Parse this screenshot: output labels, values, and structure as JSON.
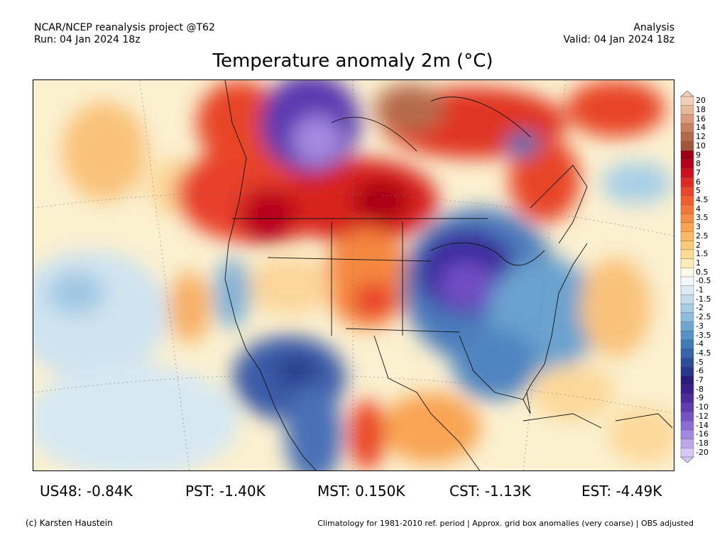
{
  "header": {
    "source": "NCAR/NCEP reanalysis project @T62",
    "run": "Run: 04 Jan 2024 18z",
    "type": "Analysis",
    "valid": "Valid: 04 Jan 2024 18z"
  },
  "title": "Temperature anomaly 2m (°C)",
  "colorbar": {
    "labels": [
      "20",
      "18",
      "16",
      "14",
      "12",
      "10",
      "9",
      "8",
      "7",
      "6",
      "5",
      "4.5",
      "4",
      "3.5",
      "3",
      "2.5",
      "2",
      "1.5",
      "1",
      "0.5",
      "-0.5",
      "-1",
      "-1.5",
      "-2",
      "-2.5",
      "-3",
      "-3.5",
      "-4",
      "-4.5",
      "-5",
      "-6",
      "-7",
      "-8",
      "-9",
      "-10",
      "-12",
      "-14",
      "-16",
      "-18",
      "-20"
    ],
    "colors": [
      "#f4cfb8",
      "#e8b89c",
      "#d99b7c",
      "#c77f60",
      "#b46848",
      "#a05638",
      "#9c0012",
      "#b5001a",
      "#cc0f1f",
      "#df2a22",
      "#ea4528",
      "#f05e30",
      "#f4773a",
      "#f68e45",
      "#f8a452",
      "#f9b964",
      "#fbcb78",
      "#fcdc94",
      "#fdecb6",
      "#fff8e4",
      "#f4f8fb",
      "#dbeaf4",
      "#c3dcec",
      "#a8cde4",
      "#8cbcdb",
      "#6ea8d1",
      "#5694c6",
      "#4279b7",
      "#3664aa",
      "#2c4f9b",
      "#27378c",
      "#281d7b",
      "#3a1e8a",
      "#4b2b9c",
      "#5d3db0",
      "#7453c3",
      "#8b6cd4",
      "#a388e1",
      "#bca6ec",
      "#d6c6f5"
    ]
  },
  "stats": [
    {
      "label": "US48: -0.84K"
    },
    {
      "label": "PST: -1.40K"
    },
    {
      "label": "MST: 0.150K"
    },
    {
      "label": "CST: -1.13K"
    },
    {
      "label": "EST: -4.49K"
    }
  ],
  "footer": {
    "credit": "(c) Karsten Haustein",
    "note": "Climatology for 1981-2010 ref. period | Approx. grid box anomalies (very coarse) | OBS adjusted"
  }
}
